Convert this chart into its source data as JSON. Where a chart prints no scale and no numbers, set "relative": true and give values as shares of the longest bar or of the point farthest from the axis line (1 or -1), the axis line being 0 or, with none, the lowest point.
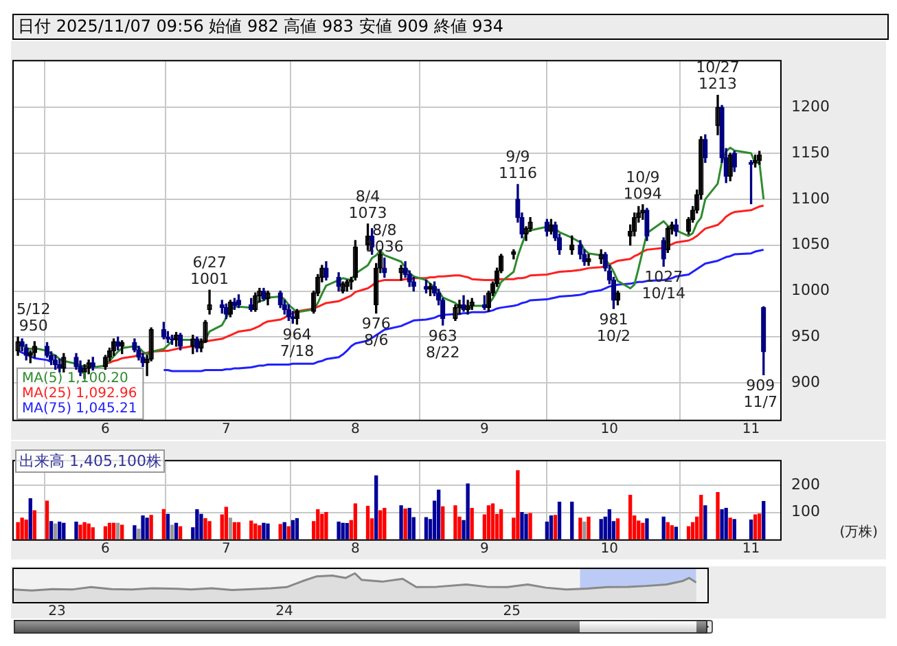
{
  "chart_data": [
    {
      "type": "candlestick",
      "title": "日付 2025/11/07 09:56 始値 982 高値 983 安値 909 終値 934",
      "colors": [
        "#000000",
        "#000080",
        "#000080",
        "#000000",
        "#000000",
        "#000080",
        "#000080",
        "#000080",
        "#000080",
        "#000000",
        "#000080",
        "#000080",
        "#000000",
        "#000000",
        "#000080",
        "#000000",
        "#000000",
        "#000000",
        "#000080",
        "#000000",
        "#000080",
        "#000080",
        "#000080",
        "#000000",
        "#000000",
        "#000080",
        "#000080",
        "#000080",
        "#000000",
        "#000080",
        "#000000",
        "#000080",
        "#000000",
        "#000000",
        "#000000",
        "#000080",
        "#000080",
        "#000000",
        "#000080",
        "#000080",
        "#000080",
        "#000000",
        "#000000",
        "#000080",
        "#000000",
        "#000080",
        "#000080",
        "#000080",
        "#000080",
        "#000000",
        "#000000",
        "#000000",
        "#000000",
        "#000080",
        "#000080",
        "#000000",
        "#000000",
        "#000000",
        "#000000",
        "#000000",
        "#000080",
        "#000000",
        "#000000",
        "#000080",
        "#000000",
        "#000080",
        "#000080",
        "#000080",
        "#000080",
        "#000000",
        "#000080",
        "#000080",
        "#000080",
        "#000000",
        "#000000",
        "#000080",
        "#000000",
        "#000000",
        "#000080",
        "#000000",
        "#000000",
        "#000000",
        "#000000",
        "#000000",
        "#000080",
        "#000080",
        "#000000",
        "#000000",
        "#000080",
        "#000000",
        "#000080",
        "#000080",
        "#000000",
        "#000080",
        "#000080",
        "#000000",
        "#000000",
        "#000080",
        "#000080",
        "#000080",
        "#000000",
        "#000000",
        "#000000",
        "#000000",
        "#000000",
        "#000080",
        "#000080",
        "#000000",
        "#000000",
        "#000080",
        "#000000",
        "#000000",
        "#000000",
        "#000000",
        "#000080",
        "#000000",
        "#000080",
        "#000080",
        "#000000",
        "#000080",
        "#000080",
        "#000000",
        "#000000",
        "#000080"
      ],
      "x": [
        "2025-05-12",
        "2025-05-13",
        "2025-05-14",
        "2025-05-15",
        "2025-05-16",
        "2025-05-19",
        "2025-05-20",
        "2025-05-21",
        "2025-05-22",
        "2025-05-23",
        "2025-05-26",
        "2025-05-27",
        "2025-05-28",
        "2025-05-29",
        "2025-05-30",
        "2025-06-02",
        "2025-06-03",
        "2025-06-04",
        "2025-06-05",
        "2025-06-06",
        "2025-06-09",
        "2025-06-10",
        "2025-06-11",
        "2025-06-12",
        "2025-06-13",
        "2025-06-16",
        "2025-06-17",
        "2025-06-18",
        "2025-06-19",
        "2025-06-20",
        "2025-06-23",
        "2025-06-24",
        "2025-06-25",
        "2025-06-26",
        "2025-06-27",
        "2025-06-30",
        "2025-07-01",
        "2025-07-02",
        "2025-07-03",
        "2025-07-04",
        "2025-07-07",
        "2025-07-08",
        "2025-07-09",
        "2025-07-10",
        "2025-07-11",
        "2025-07-14",
        "2025-07-15",
        "2025-07-16",
        "2025-07-17",
        "2025-07-18",
        "2025-07-22",
        "2025-07-23",
        "2025-07-24",
        "2025-07-25",
        "2025-07-28",
        "2025-07-29",
        "2025-07-30",
        "2025-07-31",
        "2025-08-01",
        "2025-08-04",
        "2025-08-05",
        "2025-08-06",
        "2025-08-07",
        "2025-08-08",
        "2025-08-12",
        "2025-08-13",
        "2025-08-14",
        "2025-08-15",
        "2025-08-18",
        "2025-08-19",
        "2025-08-20",
        "2025-08-21",
        "2025-08-22",
        "2025-08-25",
        "2025-08-26",
        "2025-08-27",
        "2025-08-28",
        "2025-08-29",
        "2025-09-01",
        "2025-09-02",
        "2025-09-03",
        "2025-09-04",
        "2025-09-05",
        "2025-09-08",
        "2025-09-09",
        "2025-09-10",
        "2025-09-11",
        "2025-09-12",
        "2025-09-16",
        "2025-09-17",
        "2025-09-18",
        "2025-09-19",
        "2025-09-22",
        "2025-09-24",
        "2025-09-25",
        "2025-09-26",
        "2025-09-29",
        "2025-09-30",
        "2025-10-01",
        "2025-10-02",
        "2025-10-03",
        "2025-10-06",
        "2025-10-07",
        "2025-10-08",
        "2025-10-09",
        "2025-10-10",
        "2025-10-14",
        "2025-10-15",
        "2025-10-16",
        "2025-10-17",
        "2025-10-20",
        "2025-10-21",
        "2025-10-22",
        "2025-10-23",
        "2025-10-24",
        "2025-10-27",
        "2025-10-28",
        "2025-10-29",
        "2025-10-30",
        "2025-10-31",
        "2025-11-04",
        "2025-11-05",
        "2025-11-06",
        "2025-11-07"
      ],
      "ohlc": [
        [
          935,
          950,
          930,
          945
        ],
        [
          945,
          948,
          935,
          940
        ],
        [
          938,
          942,
          925,
          930
        ],
        [
          930,
          935,
          922,
          933
        ],
        [
          933,
          945,
          928,
          940
        ],
        [
          940,
          944,
          928,
          930
        ],
        [
          930,
          934,
          920,
          925
        ],
        [
          925,
          930,
          915,
          920
        ],
        [
          920,
          926,
          912,
          916
        ],
        [
          916,
          932,
          912,
          928
        ],
        [
          928,
          932,
          915,
          918
        ],
        [
          918,
          924,
          908,
          912
        ],
        [
          912,
          920,
          905,
          916
        ],
        [
          916,
          925,
          910,
          922
        ],
        [
          922,
          928,
          914,
          918
        ],
        [
          918,
          930,
          915,
          928
        ],
        [
          928,
          938,
          924,
          935
        ],
        [
          935,
          948,
          930,
          945
        ],
        [
          945,
          950,
          936,
          940
        ],
        [
          940,
          946,
          932,
          944
        ],
        [
          944,
          948,
          934,
          936
        ],
        [
          936,
          940,
          925,
          928
        ],
        [
          928,
          932,
          918,
          922
        ],
        [
          922,
          930,
          908,
          926
        ],
        [
          926,
          960,
          924,
          958
        ],
        [
          958,
          966,
          948,
          950
        ],
        [
          950,
          956,
          944,
          948
        ],
        [
          948,
          952,
          942,
          947
        ],
        [
          947,
          955,
          940,
          952
        ],
        [
          952,
          954,
          936,
          940
        ],
        [
          940,
          952,
          932,
          948
        ],
        [
          948,
          950,
          934,
          938
        ],
        [
          938,
          948,
          934,
          945
        ],
        [
          945,
          968,
          944,
          966
        ],
        [
          980,
          1001,
          975,
          985
        ],
        [
          985,
          990,
          976,
          982
        ],
        [
          982,
          986,
          970,
          975
        ],
        [
          975,
          990,
          972,
          988
        ],
        [
          988,
          992,
          980,
          984
        ],
        [
          990,
          996,
          982,
          985
        ],
        [
          985,
          992,
          978,
          980
        ],
        [
          980,
          998,
          978,
          995
        ],
        [
          995,
          1003,
          988,
          1000
        ],
        [
          1000,
          1003,
          990,
          992
        ],
        [
          992,
          1000,
          985,
          998
        ],
        [
          998,
          1000,
          982,
          985
        ],
        [
          985,
          990,
          975,
          980
        ],
        [
          980,
          985,
          968,
          972
        ],
        [
          972,
          978,
          965,
          970
        ],
        [
          970,
          980,
          964,
          978
        ],
        [
          978,
          1000,
          976,
          998
        ],
        [
          998,
          1018,
          995,
          1015
        ],
        [
          1015,
          1028,
          1010,
          1025
        ],
        [
          1025,
          1032,
          1012,
          1015
        ],
        [
          1015,
          1020,
          1000,
          1005
        ],
        [
          1000,
          1010,
          998,
          1008
        ],
        [
          1005,
          1012,
          1000,
          1010
        ],
        [
          1010,
          1015,
          1002,
          1012
        ],
        [
          1015,
          1055,
          1012,
          1048
        ],
        [
          1050,
          1073,
          1045,
          1060
        ],
        [
          1060,
          1068,
          1040,
          1048
        ],
        [
          985,
          1030,
          976,
          1025
        ],
        [
          1025,
          1045,
          1020,
          1040
        ],
        [
          1025,
          1036,
          1015,
          1020
        ],
        [
          1020,
          1028,
          1012,
          1025
        ],
        [
          1025,
          1032,
          1015,
          1018
        ],
        [
          1018,
          1022,
          1005,
          1010
        ],
        [
          1010,
          1015,
          1000,
          1005
        ],
        [
          1005,
          1012,
          998,
          1002
        ],
        [
          1002,
          1008,
          995,
          1005
        ],
        [
          1005,
          1010,
          995,
          998
        ],
        [
          998,
          1002,
          985,
          990
        ],
        [
          990,
          992,
          963,
          970
        ],
        [
          970,
          985,
          968,
          982
        ],
        [
          982,
          990,
          975,
          985
        ],
        [
          985,
          995,
          978,
          980
        ],
        [
          980,
          990,
          975,
          984
        ],
        [
          984,
          992,
          980,
          988
        ],
        [
          985,
          995,
          980,
          982
        ],
        [
          982,
          1000,
          978,
          998
        ],
        [
          998,
          1010,
          995,
          1008
        ],
        [
          1008,
          1025,
          1005,
          1022
        ],
        [
          1022,
          1040,
          1020,
          1038
        ],
        [
          1040,
          1045,
          1035,
          1043
        ],
        [
          1100,
          1116,
          1075,
          1080
        ],
        [
          1080,
          1085,
          1058,
          1062
        ],
        [
          1062,
          1070,
          1055,
          1068
        ],
        [
          1068,
          1080,
          1065,
          1075
        ],
        [
          1075,
          1078,
          1060,
          1065
        ],
        [
          1065,
          1078,
          1062,
          1072
        ],
        [
          1072,
          1075,
          1055,
          1058
        ],
        [
          1058,
          1062,
          1040,
          1045
        ],
        [
          1045,
          1060,
          1040,
          1050
        ],
        [
          1050,
          1055,
          1035,
          1040
        ],
        [
          1040,
          1045,
          1028,
          1032
        ],
        [
          1032,
          1040,
          1028,
          1035
        ],
        [
          1035,
          1045,
          1030,
          1040
        ],
        [
          1040,
          1042,
          1022,
          1025
        ],
        [
          1022,
          1028,
          1008,
          1012
        ],
        [
          1012,
          1015,
          981,
          990
        ],
        [
          990,
          1000,
          985,
          998
        ],
        [
          1060,
          1072,
          1050,
          1065
        ],
        [
          1065,
          1085,
          1060,
          1080
        ],
        [
          1080,
          1092,
          1075,
          1085
        ],
        [
          1085,
          1094,
          1078,
          1088
        ],
        [
          1088,
          1090,
          1055,
          1060
        ],
        [
          1055,
          1058,
          1027,
          1035
        ],
        [
          1045,
          1070,
          1042,
          1068
        ],
        [
          1068,
          1075,
          1062,
          1072
        ],
        [
          1072,
          1078,
          1060,
          1065
        ],
        [
          1065,
          1080,
          1062,
          1078
        ],
        [
          1078,
          1092,
          1075,
          1088
        ],
        [
          1088,
          1110,
          1085,
          1105
        ],
        [
          1105,
          1168,
          1100,
          1165
        ],
        [
          1165,
          1170,
          1140,
          1145
        ],
        [
          1180,
          1213,
          1170,
          1200
        ],
        [
          1200,
          1202,
          1140,
          1145
        ],
        [
          1145,
          1155,
          1118,
          1125
        ],
        [
          1125,
          1150,
          1120,
          1148
        ],
        [
          1150,
          1152,
          1130,
          1135
        ],
        [
          1140,
          1142,
          1095,
          1138
        ],
        [
          1140,
          1148,
          1135,
          1142
        ],
        [
          1142,
          1152,
          1138,
          1148
        ],
        [
          982,
          983,
          909,
          934
        ]
      ],
      "series": [
        {
          "name": "MA(5) 1,100.20",
          "type": "line",
          "color": "#2e8b2e",
          "values": [
            945,
            942,
            938,
            937,
            938,
            935,
            932,
            930,
            926,
            924,
            921,
            919,
            918,
            919,
            917,
            919,
            924,
            929,
            934,
            938,
            940,
            939,
            934,
            931,
            934,
            937,
            941,
            946,
            951,
            947,
            947,
            945,
            945,
            947,
            956,
            963,
            971,
            979,
            983,
            983,
            982,
            986,
            989,
            990,
            993,
            994,
            991,
            985,
            981,
            977,
            980,
            987,
            997,
            1006,
            1012,
            1014,
            1013,
            1012,
            1019,
            1028,
            1036,
            1039,
            1044,
            1039,
            1032,
            1026,
            1020,
            1016,
            1012,
            1008,
            1004,
            1000,
            993,
            987,
            983,
            981,
            980,
            984,
            984,
            986,
            992,
            1000,
            1010,
            1021,
            1038,
            1051,
            1063,
            1066,
            1070,
            1070,
            1068,
            1064,
            1058,
            1053,
            1045,
            1041,
            1039,
            1034,
            1029,
            1021,
            1011,
            1003,
            1007,
            1025,
            1044,
            1063,
            1076,
            1071,
            1067,
            1066,
            1060,
            1063,
            1074,
            1080,
            1100,
            1117,
            1141,
            1152,
            1156,
            1153,
            1150,
            1139,
            1140,
            1100
          ]
        },
        {
          "name": "MA(25) 1,092.96",
          "type": "line",
          "color": "#ff2020",
          "values": [
            null,
            null,
            null,
            null,
            null,
            null,
            null,
            null,
            null,
            null,
            null,
            null,
            null,
            null,
            null,
            921,
            922,
            924,
            925,
            927,
            929,
            931,
            932,
            933,
            934,
            935,
            935,
            936,
            937,
            938,
            940,
            941,
            943,
            945,
            946,
            948,
            950,
            952,
            954,
            956,
            958,
            960,
            962,
            965,
            967,
            969,
            971,
            974,
            976,
            978,
            981,
            983,
            985,
            987,
            989,
            991,
            993,
            995,
            999,
            1003,
            1006,
            1010,
            1011,
            1012,
            1012,
            1013,
            1013,
            1014,
            1014,
            1015,
            1015,
            1016,
            1016,
            1017,
            1017,
            1016,
            1015,
            1013,
            1012,
            1012,
            1012,
            1013,
            1013,
            1013,
            1014,
            1014,
            1015,
            1017,
            1018,
            1019,
            1020,
            1021,
            1022,
            1023,
            1024,
            1025,
            1026,
            1027,
            1029,
            1031,
            1033,
            1035,
            1038,
            1040,
            1043,
            1045,
            1047,
            1049,
            1051,
            1053,
            1055,
            1057,
            1060,
            1064,
            1068,
            1072,
            1076,
            1081,
            1084,
            1086,
            1088,
            1090,
            1092,
            1093
          ]
        },
        {
          "name": "MA(75) 1,045.21",
          "type": "line",
          "color": "#2020ff",
          "values": [
            935,
            933,
            931,
            929,
            927,
            925,
            923,
            null,
            null,
            null,
            null,
            null,
            null,
            null,
            null,
            null,
            null,
            null,
            null,
            null,
            null,
            null,
            null,
            null,
            null,
            914,
            914,
            913,
            913,
            913,
            913,
            913,
            913,
            914,
            914,
            914,
            915,
            915,
            916,
            916,
            917,
            918,
            919,
            919,
            920,
            920,
            920,
            920,
            921,
            921,
            921,
            923,
            924,
            926,
            928,
            931,
            935,
            940,
            943,
            946,
            949,
            952,
            955,
            958,
            962,
            964,
            966,
            968,
            969,
            970,
            971,
            973,
            974,
            975,
            975,
            976,
            976,
            977,
            977,
            978,
            979,
            981,
            982,
            984,
            985,
            987,
            988,
            990,
            991,
            992,
            993,
            994,
            995,
            996,
            997,
            999,
            1001,
            1003,
            1005,
            1006,
            1007,
            1008,
            1009,
            1010,
            1010,
            1011,
            1012,
            1013,
            1014,
            1016,
            1018,
            1021,
            1024,
            1027,
            1030,
            1033,
            1035,
            1037,
            1038,
            1040,
            1041,
            1043,
            1044,
            1045
          ]
        }
      ],
      "annotations": [
        {
          "text": "5/12\n950",
          "x": "2025-05-12",
          "y": 950
        },
        {
          "text": "6/27\n1001",
          "x": "2025-06-27",
          "y": 1001
        },
        {
          "text": "964\n7/18",
          "x": "2025-07-18",
          "y": 964
        },
        {
          "text": "8/4\n1073",
          "x": "2025-08-04",
          "y": 1073
        },
        {
          "text": "976\n8/6",
          "x": "2025-08-06",
          "y": 976
        },
        {
          "text": "8/8\n1036",
          "x": "2025-08-08",
          "y": 1036
        },
        {
          "text": "963\n8/22",
          "x": "2025-08-22",
          "y": 963
        },
        {
          "text": "9/9\n1116",
          "x": "2025-09-09",
          "y": 1116
        },
        {
          "text": "981\n10/2",
          "x": "2025-10-02",
          "y": 981
        },
        {
          "text": "10/9\n1094",
          "x": "2025-10-09",
          "y": 1094
        },
        {
          "text": "1027\n10/14",
          "x": "2025-10-14",
          "y": 1027
        },
        {
          "text": "10/27\n1213",
          "x": "2025-10-27",
          "y": 1213
        },
        {
          "text": "909\n11/7",
          "x": "2025-11-07",
          "y": 909
        }
      ],
      "xlim": [
        "2025-05-11",
        "2025-11-11"
      ],
      "xticks": [
        {
          "value": "2025-06-02",
          "label": "6"
        },
        {
          "value": "2025-07-01",
          "label": "7"
        },
        {
          "value": "2025-08-01",
          "label": "8"
        },
        {
          "value": "2025-09-01",
          "label": "9"
        },
        {
          "value": "2025-10-01",
          "label": "10"
        },
        {
          "value": "2025-11-04",
          "label": "11"
        }
      ],
      "ylim": [
        860,
        1250
      ],
      "yticks": [
        900,
        950,
        1000,
        1050,
        1100,
        1150,
        1200
      ],
      "grid": true,
      "legend": "bottom left"
    },
    {
      "type": "bar",
      "title": "出来高 1,405,100株",
      "ylabel": "(万株)",
      "x": [
        "2025-05-12",
        "2025-05-13",
        "2025-05-14",
        "2025-05-15",
        "2025-05-16",
        "2025-05-19",
        "2025-05-20",
        "2025-05-21",
        "2025-05-22",
        "2025-05-23",
        "2025-05-26",
        "2025-05-27",
        "2025-05-28",
        "2025-05-29",
        "2025-05-30",
        "2025-06-02",
        "2025-06-03",
        "2025-06-04",
        "2025-06-05",
        "2025-06-06",
        "2025-06-09",
        "2025-06-10",
        "2025-06-11",
        "2025-06-12",
        "2025-06-13",
        "2025-06-16",
        "2025-06-17",
        "2025-06-18",
        "2025-06-19",
        "2025-06-20",
        "2025-06-23",
        "2025-06-24",
        "2025-06-25",
        "2025-06-26",
        "2025-06-27",
        "2025-06-30",
        "2025-07-01",
        "2025-07-02",
        "2025-07-03",
        "2025-07-04",
        "2025-07-07",
        "2025-07-08",
        "2025-07-09",
        "2025-07-10",
        "2025-07-11",
        "2025-07-14",
        "2025-07-15",
        "2025-07-16",
        "2025-07-17",
        "2025-07-18",
        "2025-07-22",
        "2025-07-23",
        "2025-07-24",
        "2025-07-25",
        "2025-07-28",
        "2025-07-29",
        "2025-07-30",
        "2025-07-31",
        "2025-08-01",
        "2025-08-04",
        "2025-08-05",
        "2025-08-06",
        "2025-08-07",
        "2025-08-08",
        "2025-08-12",
        "2025-08-13",
        "2025-08-14",
        "2025-08-15",
        "2025-08-18",
        "2025-08-19",
        "2025-08-20",
        "2025-08-21",
        "2025-08-22",
        "2025-08-25",
        "2025-08-26",
        "2025-08-27",
        "2025-08-28",
        "2025-08-29",
        "2025-09-01",
        "2025-09-02",
        "2025-09-03",
        "2025-09-04",
        "2025-09-05",
        "2025-09-08",
        "2025-09-09",
        "2025-09-10",
        "2025-09-11",
        "2025-09-12",
        "2025-09-16",
        "2025-09-17",
        "2025-09-18",
        "2025-09-19",
        "2025-09-22",
        "2025-09-24",
        "2025-09-25",
        "2025-09-26",
        "2025-09-29",
        "2025-09-30",
        "2025-10-01",
        "2025-10-02",
        "2025-10-03",
        "2025-10-06",
        "2025-10-07",
        "2025-10-08",
        "2025-10-09",
        "2025-10-10",
        "2025-10-14",
        "2025-10-15",
        "2025-10-16",
        "2025-10-17",
        "2025-10-20",
        "2025-10-21",
        "2025-10-22",
        "2025-10-23",
        "2025-10-24",
        "2025-10-27",
        "2025-10-28",
        "2025-10-29",
        "2025-10-30",
        "2025-10-31",
        "2025-11-04",
        "2025-11-05",
        "2025-11-06",
        "2025-11-07"
      ],
      "values": [
        62,
        79,
        72,
        151,
        106,
        142,
        66,
        57,
        64,
        60,
        64,
        53,
        62,
        57,
        43,
        47,
        60,
        60,
        60,
        53,
        51,
        38,
        87,
        79,
        89,
        111,
        93,
        53,
        60,
        47,
        43,
        110,
        93,
        77,
        66,
        91,
        119,
        79,
        62,
        62,
        68,
        57,
        51,
        60,
        57,
        55,
        62,
        47,
        70,
        77,
        66,
        110,
        93,
        100,
        64,
        60,
        59,
        70,
        132,
        123,
        76,
        236,
        106,
        115,
        125,
        113,
        115,
        81,
        81,
        74,
        142,
        183,
        121,
        125,
        83,
        70,
        206,
        115,
        91,
        125,
        132,
        93,
        110,
        79,
        255,
        100,
        93,
        96,
        64,
        87,
        89,
        138,
        138,
        79,
        64,
        83,
        74,
        83,
        110,
        66,
        76,
        164,
        87,
        68,
        60,
        76,
        83,
        62,
        51,
        45,
        47,
        62,
        83,
        164,
        125,
        174,
        110,
        115,
        79,
        74,
        72,
        91,
        94,
        141
      ],
      "colors": [
        "#ff0000",
        "#ff0000",
        "#ff0000",
        "#000099",
        "#ff0000",
        "#ff0000",
        "#000099",
        "#999999",
        "#000099",
        "#000099",
        "#000099",
        "#ff0000",
        "#ff0000",
        "#ff0000",
        "#ff0000",
        "#ff0000",
        "#ff0000",
        "#ff0000",
        "#999999",
        "#ff0000",
        "#000099",
        "#999999",
        "#000099",
        "#000099",
        "#ff0000",
        "#ff0000",
        "#000099",
        "#999999",
        "#000099",
        "#ff0000",
        "#000099",
        "#000099",
        "#000099",
        "#ff0000",
        "#ff0000",
        "#ff0000",
        "#ff0000",
        "#999999",
        "#ff0000",
        "#ff0000",
        "#ff0000",
        "#ff0000",
        "#ff0000",
        "#000099",
        "#000099",
        "#ff0000",
        "#000099",
        "#ff0000",
        "#000099",
        "#000099",
        "#ff0000",
        "#ff0000",
        "#ff0000",
        "#ff0000",
        "#000099",
        "#000099",
        "#000099",
        "#ff0000",
        "#ff0000",
        "#ff0000",
        "#ff0000",
        "#000099",
        "#ff0000",
        "#ff0000",
        "#000099",
        "#ff0000",
        "#000099",
        "#000099",
        "#000099",
        "#000099",
        "#000099",
        "#000099",
        "#ff0000",
        "#ff0000",
        "#ff0000",
        "#000099",
        "#000099",
        "#ff0000",
        "#ff0000",
        "#ff0000",
        "#ff0000",
        "#ff0000",
        "#ff0000",
        "#ff0000",
        "#ff0000",
        "#000099",
        "#000099",
        "#ff0000",
        "#000099",
        "#000099",
        "#ff0000",
        "#000099",
        "#000099",
        "#ff0000",
        "#999999",
        "#ff0000",
        "#000099",
        "#000099",
        "#000099",
        "#000099",
        "#ff0000",
        "#ff0000",
        "#ff0000",
        "#ff0000",
        "#ff0000",
        "#000099",
        "#000099",
        "#ff0000",
        "#ff0000",
        "#000099",
        "#ff0000",
        "#ff0000",
        "#ff0000",
        "#ff0000",
        "#000099",
        "#ff0000",
        "#000099",
        "#000099",
        "#ff0000",
        "#000099",
        "#000099",
        "#ff0000",
        "#ff0000",
        "#000099"
      ],
      "xlim": [
        "2025-05-11",
        "2025-11-11"
      ],
      "xticks": [
        {
          "value": "2025-06-02",
          "label": "6"
        },
        {
          "value": "2025-07-01",
          "label": "7"
        },
        {
          "value": "2025-08-01",
          "label": "8"
        },
        {
          "value": "2025-09-01",
          "label": "9"
        },
        {
          "value": "2025-10-01",
          "label": "10"
        },
        {
          "value": "2025-11-04",
          "label": "11"
        }
      ],
      "ylim": [
        0,
        290
      ],
      "yticks": [
        100,
        200
      ],
      "grid": true
    },
    {
      "type": "area",
      "relative": true,
      "color": "#888888",
      "x": [
        2022.81,
        2022.89,
        2022.98,
        2023.07,
        2023.15,
        2023.24,
        2023.33,
        2023.42,
        2023.5,
        2023.59,
        2023.68,
        2023.77,
        2023.86,
        2023.94,
        2024.01,
        2024.08,
        2024.14,
        2024.21,
        2024.27,
        2024.31,
        2024.34,
        2024.43,
        2024.52,
        2024.58,
        2024.67,
        2024.8,
        2024.89,
        2024.98,
        2025.07,
        2025.15,
        2025.24,
        2025.33,
        2025.42,
        2025.51,
        2025.59,
        2025.68,
        2025.75,
        2025.78,
        2025.81
      ],
      "values": [
        0.44,
        0.4,
        0.45,
        0.44,
        0.52,
        0.45,
        0.44,
        0.48,
        0.47,
        0.44,
        0.48,
        0.42,
        0.45,
        0.48,
        0.52,
        0.73,
        0.89,
        0.92,
        0.84,
        1,
        0.77,
        0.71,
        0.81,
        0.52,
        0.53,
        0.61,
        0.53,
        0.52,
        0.61,
        0.5,
        0.44,
        0.47,
        0.52,
        0.53,
        0.56,
        0.61,
        0.73,
        0.84,
        0.68
      ],
      "xlim": [
        2022.81,
        2025.86
      ],
      "xticks": [
        {
          "value": 2023,
          "label": "23"
        },
        {
          "value": 2024,
          "label": "24"
        },
        {
          "value": 2025,
          "label": "25"
        }
      ],
      "bands": [
        {
          "axis": "x",
          "from": 2025.3,
          "to": 2025.81,
          "color": "#bccbf5"
        }
      ]
    }
  ]
}
